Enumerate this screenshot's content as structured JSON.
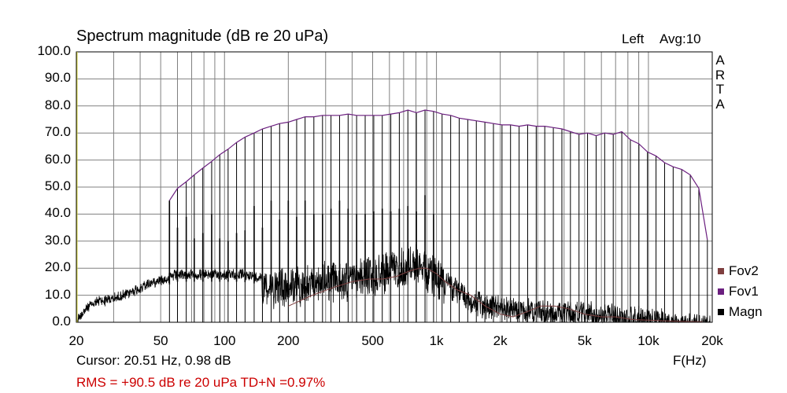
{
  "title": "Spectrum magnitude (dB re 20 uPa)",
  "channel": "Left",
  "average": "Avg:10",
  "brand_letters": [
    "A",
    "R",
    "T",
    "A"
  ],
  "cursor_readout": "Cursor: 20.51 Hz, 0.98 dB",
  "measurement": "RMS =  +90.5 dB re 20 uPa  TD+N =0.97%",
  "colors": {
    "fov2": "#7f3f3f",
    "fov1": "#6b1f7f",
    "magn": "#000000",
    "rms_text": "#cc0000",
    "grid": "#808080"
  },
  "chart_data": {
    "type": "line",
    "title": "Spectrum magnitude (dB re 20 uPa)",
    "xlabel": "F(Hz)",
    "ylabel": "",
    "x_scale": "log",
    "xlim": [
      20,
      20000
    ],
    "ylim": [
      0,
      100
    ],
    "x_tick_labels": [
      {
        "value": 20,
        "label": "20"
      },
      {
        "value": 50,
        "label": "50"
      },
      {
        "value": 100,
        "label": "100"
      },
      {
        "value": 200,
        "label": "200"
      },
      {
        "value": 500,
        "label": "500"
      },
      {
        "value": 1000,
        "label": "1k"
      },
      {
        "value": 2000,
        "label": "2k"
      },
      {
        "value": 5000,
        "label": "5k"
      },
      {
        "value": 10000,
        "label": "10k"
      },
      {
        "value": 20000,
        "label": "20k"
      }
    ],
    "y_tick_labels": [
      "0.0",
      "10.0",
      "20.0",
      "30.0",
      "40.0",
      "50.0",
      "60.0",
      "70.0",
      "80.0",
      "90.0",
      "100.0"
    ],
    "grid": true,
    "legend": {
      "placement": "bottom-right",
      "entries": [
        "Fov2",
        "Fov1",
        "Magn"
      ]
    },
    "series": [
      {
        "name": "Fov1",
        "color": "#6b1f7f",
        "x": [
          55,
          60,
          66,
          72,
          79,
          87,
          95,
          104,
          114,
          125,
          138,
          151,
          166,
          182,
          200,
          219,
          240,
          264,
          290,
          318,
          349,
          383,
          420,
          461,
          506,
          555,
          609,
          668,
          733,
          804,
          883,
          969,
          1063,
          1167,
          1280,
          1405,
          1542,
          1692,
          1857,
          2038,
          2236,
          2454,
          2693,
          2955,
          3243,
          3559,
          3906,
          4286,
          4704,
          5162,
          5665,
          6217,
          6823,
          7488,
          8217,
          9018,
          9897,
          10861,
          11919,
          13081,
          14355,
          15754,
          17289,
          18973
        ],
        "y": [
          45,
          49.5,
          52,
          54.5,
          57,
          59.5,
          62,
          64,
          66.5,
          68.5,
          70,
          71.5,
          72.5,
          73.5,
          74,
          75,
          76,
          76,
          76.5,
          76.5,
          76.5,
          77,
          76.5,
          76.5,
          76.5,
          76.5,
          77,
          77.5,
          78.5,
          77.5,
          78.5,
          78,
          77,
          76.5,
          75.5,
          75,
          74.5,
          74,
          73.5,
          73,
          73,
          72.5,
          73,
          72.5,
          72.5,
          72,
          71.5,
          70.5,
          69.5,
          70,
          69,
          70,
          69.5,
          70.5,
          67.5,
          66,
          63,
          61.5,
          59,
          57.5,
          56.5,
          54.5,
          49.5,
          30.5
        ]
      },
      {
        "name": "Fov2",
        "color": "#7f3f3f",
        "x": [
          200,
          260,
          330,
          400,
          480,
          560,
          650,
          750,
          830,
          900,
          1000,
          1100,
          1250,
          1450,
          1700,
          2000,
          2300,
          2700,
          3100,
          3600,
          4200,
          5000,
          6000,
          7000,
          8500,
          10000,
          12000,
          15000,
          18000
        ],
        "y": [
          6,
          10,
          13,
          15,
          16,
          16,
          17,
          19,
          20,
          20,
          18,
          15,
          12,
          10,
          6,
          3,
          2,
          4,
          6,
          6,
          5,
          3,
          2,
          2,
          1,
          0.8,
          0.5,
          0.3,
          0.2
        ]
      },
      {
        "name": "Magn",
        "color": "#000000",
        "envelope": {
          "x": [
            20,
            22,
            25,
            30,
            35,
            40,
            45,
            50,
            55,
            60,
            70,
            80,
            100,
            120,
            150,
            180,
            200,
            250,
            300,
            400,
            500,
            600,
            700,
            800,
            900,
            1000,
            1200,
            1500,
            2000,
            3000,
            4000,
            5000,
            7000,
            10000,
            12000,
            15000,
            18000,
            20000
          ],
          "y": [
            2,
            6,
            9,
            10,
            12,
            14,
            16,
            17,
            18,
            19,
            19,
            19,
            19,
            19,
            18,
            18,
            18,
            18,
            20,
            20,
            22,
            24,
            25,
            26,
            24,
            22,
            16,
            10,
            8,
            7,
            6,
            6,
            5,
            4,
            3,
            2,
            1,
            0.5
          ]
        },
        "harmonic_peaks": {
          "x": [
            55,
            60,
            66,
            72,
            79,
            87,
            95,
            104,
            114,
            125,
            138,
            151,
            166,
            182,
            200,
            219,
            240,
            264,
            290,
            318,
            349,
            383,
            420,
            461,
            506,
            555,
            609,
            668,
            733,
            804,
            883,
            969
          ],
          "y": [
            45,
            35,
            39,
            31,
            33,
            40,
            31,
            30,
            33,
            34,
            43,
            35,
            45,
            38,
            45,
            39,
            45,
            40,
            40,
            42,
            45,
            42,
            40,
            40,
            41,
            42,
            41,
            42,
            43,
            41,
            47,
            40
          ]
        }
      }
    ]
  }
}
